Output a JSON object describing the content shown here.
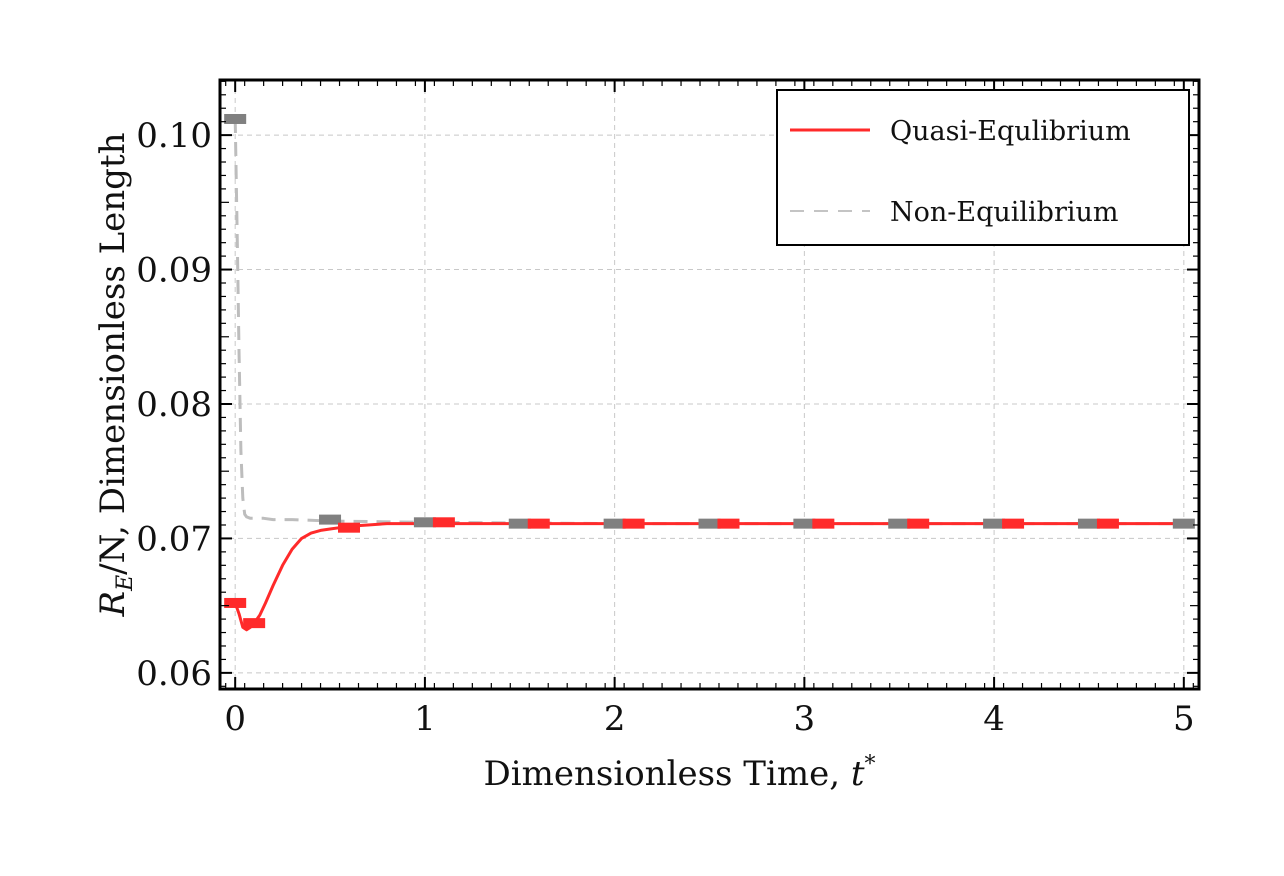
{
  "chart_data": {
    "type": "line",
    "title": "",
    "xlabel": "Dimensionless Time, ",
    "xlabel_var": "t",
    "xlabel_sup": "*",
    "ylabel_var": "R",
    "ylabel_sub": "E",
    "ylabel_rest": "/N, Dimensionless Length",
    "xlim": [
      -0.08,
      5.08
    ],
    "ylim": [
      0.0588,
      0.1041
    ],
    "x_ticks": [
      0,
      1,
      2,
      3,
      4,
      5
    ],
    "x_tick_labels": [
      "0",
      "1",
      "2",
      "3",
      "4",
      "5"
    ],
    "y_ticks": [
      0.06,
      0.07,
      0.08,
      0.09,
      0.1
    ],
    "y_tick_labels": [
      "0.06",
      "0.07",
      "0.08",
      "0.09",
      "0.10"
    ],
    "grid": true,
    "legend_position": "top-right",
    "series": [
      {
        "name": "Quasi-Equlibrium",
        "color": "#ff2a2a",
        "style": "solid",
        "x": [
          0.0,
          0.02,
          0.04,
          0.06,
          0.08,
          0.1,
          0.13,
          0.16,
          0.2,
          0.25,
          0.3,
          0.35,
          0.4,
          0.45,
          0.5,
          0.55,
          0.6,
          0.7,
          0.8,
          1.0,
          1.5,
          2.0,
          3.0,
          4.0,
          5.0
        ],
        "y": [
          0.0652,
          0.0644,
          0.0634,
          0.0632,
          0.0634,
          0.0637,
          0.0643,
          0.0652,
          0.0665,
          0.068,
          0.0692,
          0.07,
          0.0704,
          0.0706,
          0.0707,
          0.0708,
          0.0709,
          0.071,
          0.0711,
          0.0711,
          0.0711,
          0.0711,
          0.0711,
          0.0711,
          0.0711
        ],
        "markers_x": [
          0.0,
          0.1,
          0.6,
          1.1,
          1.6,
          2.1,
          2.6,
          3.1,
          3.6,
          4.1,
          4.6
        ],
        "markers_y": [
          0.0652,
          0.0637,
          0.0708,
          0.0712,
          0.0711,
          0.0711,
          0.0711,
          0.0711,
          0.0711,
          0.0711,
          0.0711
        ]
      },
      {
        "name": "Non-Equilibrium",
        "color": "#bdbdbd",
        "marker_color": "#808080",
        "style": "dashed",
        "x": [
          0.0,
          0.01,
          0.02,
          0.03,
          0.04,
          0.05,
          0.06,
          0.08,
          0.1,
          0.15,
          0.2,
          0.3,
          0.5,
          1.0,
          2.0,
          3.0,
          4.0,
          5.0
        ],
        "y": [
          0.1012,
          0.093,
          0.084,
          0.0765,
          0.073,
          0.0718,
          0.0716,
          0.0715,
          0.0715,
          0.0715,
          0.0714,
          0.0714,
          0.0713,
          0.0712,
          0.0711,
          0.0711,
          0.0711,
          0.0711
        ],
        "markers_x": [
          0.0,
          0.5,
          1.0,
          1.5,
          2.0,
          2.5,
          3.0,
          3.5,
          4.0,
          4.5,
          5.0
        ],
        "markers_y": [
          0.1012,
          0.0714,
          0.0712,
          0.0711,
          0.0711,
          0.0711,
          0.0711,
          0.0711,
          0.0711,
          0.0711,
          0.0711
        ]
      }
    ]
  }
}
